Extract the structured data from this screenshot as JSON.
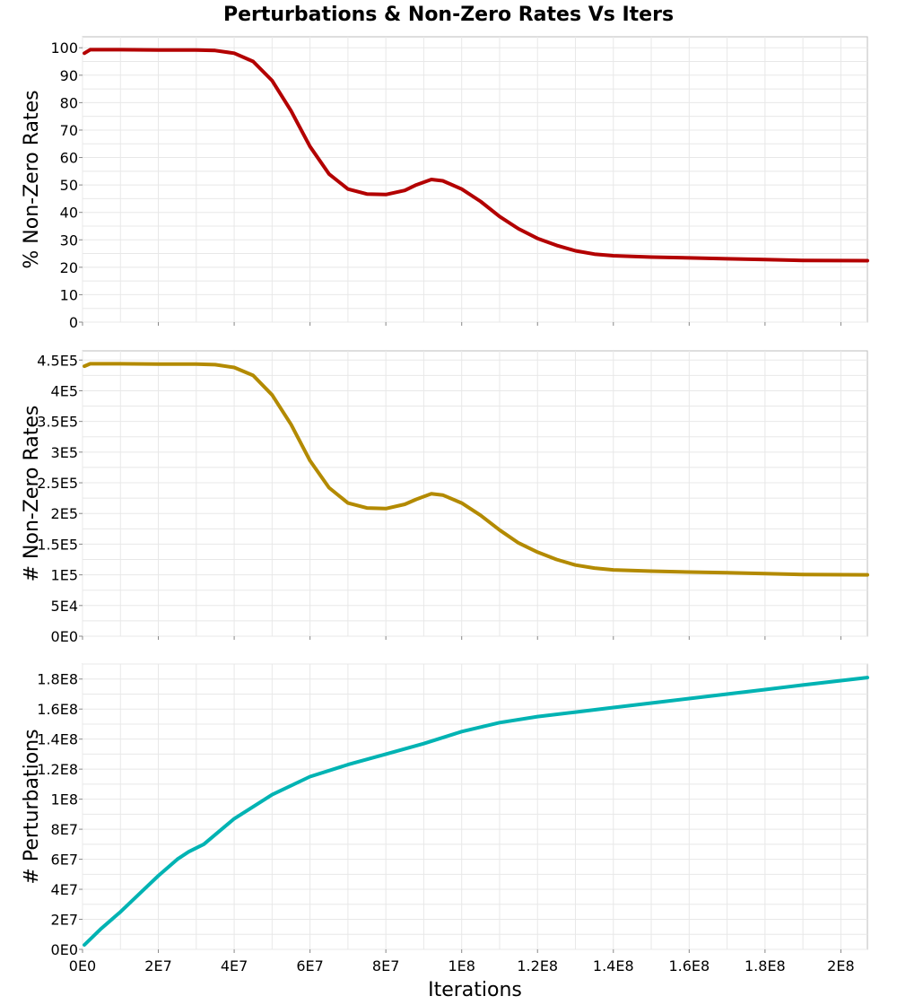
{
  "chart_title": "Perturbations & Non-Zero Rates Vs Iters",
  "chart_data": [
    {
      "type": "line",
      "ylabel": "% Non-Zero Rates",
      "xlabel": "",
      "xlim": [
        0,
        207000000
      ],
      "ylim": [
        0,
        104
      ],
      "yticks": [
        0,
        10,
        20,
        30,
        40,
        50,
        60,
        70,
        80,
        90,
        100
      ],
      "ytick_labels": [
        "0",
        "10",
        "20",
        "30",
        "40",
        "50",
        "60",
        "70",
        "80",
        "90",
        "100"
      ],
      "grid": true,
      "series": [
        {
          "color": "#b30000",
          "x": [
            500000,
            2000000,
            10000000,
            20000000,
            30000000,
            35000000,
            40000000,
            45000000,
            50000000,
            55000000,
            60000000,
            65000000,
            70000000,
            75000000,
            80000000,
            85000000,
            88000000,
            92000000,
            95000000,
            100000000,
            105000000,
            110000000,
            115000000,
            120000000,
            125000000,
            130000000,
            135000000,
            140000000,
            150000000,
            160000000,
            170000000,
            180000000,
            190000000,
            207000000
          ],
          "y": [
            98,
            99.3,
            99.3,
            99.2,
            99.2,
            99,
            98,
            95,
            88,
            77,
            64,
            54,
            48.5,
            46.7,
            46.5,
            48,
            50,
            52,
            51.5,
            48.5,
            44,
            38.5,
            34,
            30.5,
            28,
            26,
            24.8,
            24.2,
            23.7,
            23.4,
            23.1,
            22.8,
            22.5,
            22.4
          ]
        }
      ]
    },
    {
      "type": "line",
      "ylabel": "# Non-Zero Rates",
      "xlabel": "",
      "xlim": [
        0,
        207000000
      ],
      "ylim": [
        0,
        465000
      ],
      "yticks": [
        0,
        50000,
        100000,
        150000,
        200000,
        250000,
        300000,
        350000,
        400000,
        450000
      ],
      "ytick_labels": [
        "0E0",
        "5E4",
        "1E5",
        "1.5E5",
        "2E5",
        "2.5E5",
        "3E5",
        "3.5E5",
        "4E5",
        "4.5E5"
      ],
      "grid": true,
      "series": [
        {
          "color": "#b38a00",
          "x": [
            500000,
            2000000,
            10000000,
            20000000,
            30000000,
            35000000,
            40000000,
            45000000,
            50000000,
            55000000,
            60000000,
            65000000,
            70000000,
            75000000,
            80000000,
            85000000,
            88000000,
            92000000,
            95000000,
            100000000,
            105000000,
            110000000,
            115000000,
            120000000,
            125000000,
            130000000,
            135000000,
            140000000,
            150000000,
            160000000,
            170000000,
            180000000,
            190000000,
            207000000
          ],
          "y": [
            440000,
            444000,
            444000,
            443500,
            443500,
            442500,
            438000,
            425000,
            393000,
            345000,
            286000,
            242000,
            217000,
            209000,
            208000,
            215000,
            223000,
            232000,
            230000,
            217000,
            197000,
            173000,
            152000,
            137000,
            125000,
            116000,
            111000,
            108000,
            106000,
            104500,
            103500,
            102000,
            100500,
            100000
          ]
        }
      ]
    },
    {
      "type": "line",
      "ylabel": "# Perturbations",
      "xlabel": "Iterations",
      "xlim": [
        0,
        207000000
      ],
      "ylim": [
        0,
        190000000
      ],
      "yticks": [
        0,
        20000000,
        40000000,
        60000000,
        80000000,
        100000000,
        120000000,
        140000000,
        160000000,
        180000000
      ],
      "ytick_labels": [
        "0E0",
        "2E7",
        "4E7",
        "6E7",
        "8E7",
        "1E8",
        "1.2E8",
        "1.4E8",
        "1.6E8",
        "1.8E8"
      ],
      "xticks": [
        0,
        20000000,
        40000000,
        60000000,
        80000000,
        100000000,
        120000000,
        140000000,
        160000000,
        180000000,
        200000000
      ],
      "xtick_labels": [
        "0E0",
        "2E7",
        "4E7",
        "6E7",
        "8E7",
        "1E8",
        "1.2E8",
        "1.4E8",
        "1.6E8",
        "1.8E8",
        "2E8"
      ],
      "grid": true,
      "series": [
        {
          "color": "#00b3b3",
          "x": [
            500000,
            5000000,
            10000000,
            15000000,
            20000000,
            25000000,
            28000000,
            32000000,
            40000000,
            50000000,
            60000000,
            70000000,
            80000000,
            90000000,
            100000000,
            110000000,
            120000000,
            130000000,
            140000000,
            150000000,
            160000000,
            170000000,
            180000000,
            190000000,
            207000000
          ],
          "y": [
            3000000,
            14000000,
            25000000,
            37000000,
            49000000,
            60000000,
            65000000,
            70000000,
            87000000,
            103000000,
            115000000,
            123000000,
            130000000,
            137000000,
            145000000,
            151000000,
            155000000,
            158000000,
            161000000,
            164000000,
            167000000,
            170000000,
            173000000,
            176000000,
            181000000
          ]
        }
      ]
    }
  ]
}
